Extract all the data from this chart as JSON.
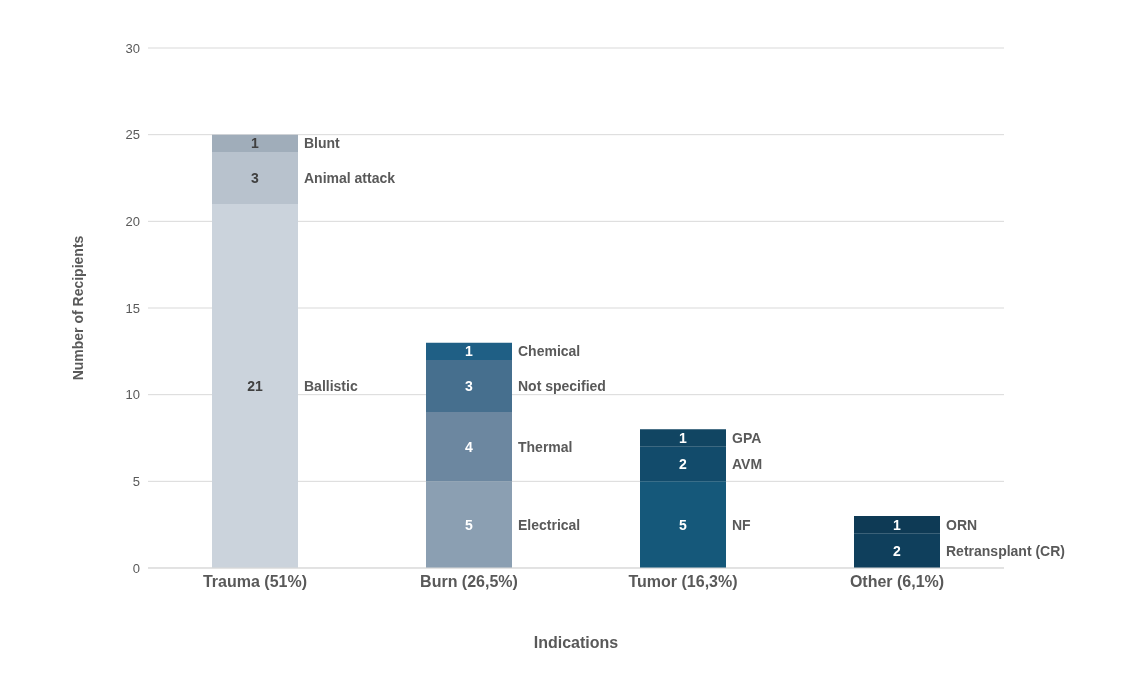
{
  "chart_data": {
    "type": "bar",
    "stacked": true,
    "xlabel": "Indications",
    "ylabel": "Number of Recipients",
    "categories": [
      "Trauma (51%)",
      "Burn (26,5%)",
      "Tumor (16,3%)",
      "Other (6,1%)"
    ],
    "ylim": [
      0,
      30
    ],
    "yticks": [
      0,
      5,
      10,
      15,
      20,
      25,
      30
    ],
    "grid": "y",
    "legend": false,
    "data_labels": true,
    "series": [
      {
        "name": "Ballistic",
        "color": "#cbd3dc",
        "values": [
          21,
          null,
          null,
          null
        ]
      },
      {
        "name": "Animal attack",
        "color": "#b8c2cd",
        "values": [
          3,
          null,
          null,
          null
        ]
      },
      {
        "name": "Blunt",
        "color": "#a0adba",
        "values": [
          1,
          null,
          null,
          null
        ]
      },
      {
        "name": "Electrical",
        "color": "#8b9fb2",
        "values": [
          null,
          5,
          null,
          null
        ]
      },
      {
        "name": "Thermal",
        "color": "#6c87a0",
        "values": [
          null,
          4,
          null,
          null
        ]
      },
      {
        "name": "Not specified",
        "color": "#466f8e",
        "values": [
          null,
          3,
          null,
          null
        ]
      },
      {
        "name": "Chemical",
        "color": "#1f5f85",
        "values": [
          null,
          1,
          null,
          null
        ]
      },
      {
        "name": "NF",
        "color": "#15587a",
        "values": [
          null,
          null,
          5,
          null
        ]
      },
      {
        "name": "AVM",
        "color": "#124b6b",
        "values": [
          null,
          null,
          2,
          null
        ]
      },
      {
        "name": "GPA",
        "color": "#114562",
        "values": [
          null,
          null,
          1,
          null
        ]
      },
      {
        "name": "Retransplant (CR)",
        "color": "#0f3f5c",
        "values": [
          null,
          null,
          null,
          2
        ]
      },
      {
        "name": "ORN",
        "color": "#0e3a55",
        "values": [
          null,
          null,
          null,
          1
        ]
      }
    ]
  }
}
